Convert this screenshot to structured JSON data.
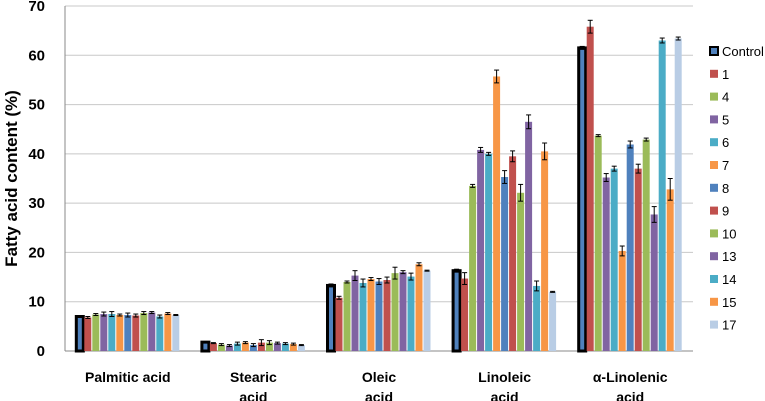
{
  "chart_data": {
    "type": "bar",
    "title": "",
    "xlabel": "",
    "ylabel": "Fatty acid content (%)",
    "ylim": [
      0,
      70
    ],
    "yticks": [
      0,
      10,
      20,
      30,
      40,
      50,
      60,
      70
    ],
    "grid": true,
    "legend_position": "right",
    "categories": [
      [
        "Palmitic acid"
      ],
      [
        "Stearic",
        "acid"
      ],
      [
        "Oleic",
        "acid"
      ],
      [
        "Linoleic",
        "acid"
      ],
      [
        "α-Linolenic",
        "acid"
      ]
    ],
    "series": [
      {
        "name": "Control",
        "color": "#4F81BD",
        "highlight": true,
        "values": [
          7.0,
          1.8,
          13.3,
          16.3,
          61.5
        ],
        "errors": [
          0.2,
          0.1,
          0.3,
          0.3,
          0.3
        ]
      },
      {
        "name": "1",
        "color": "#C0504D",
        "values": [
          6.8,
          1.6,
          10.8,
          14.7,
          65.8
        ],
        "errors": [
          0.2,
          0.1,
          0.3,
          1.2,
          1.3
        ]
      },
      {
        "name": "4",
        "color": "#9BBB59",
        "values": [
          7.4,
          1.3,
          14.0,
          33.5,
          43.7
        ],
        "errors": [
          0.2,
          0.2,
          0.2,
          0.3,
          0.2
        ]
      },
      {
        "name": "5",
        "color": "#8064A2",
        "values": [
          7.5,
          1.1,
          15.3,
          40.8,
          35.2
        ],
        "errors": [
          0.4,
          0.2,
          1.0,
          0.5,
          0.8
        ]
      },
      {
        "name": "6",
        "color": "#4BACC6",
        "values": [
          7.5,
          1.5,
          13.8,
          40.0,
          37.0
        ],
        "errors": [
          0.5,
          0.3,
          0.8,
          0.3,
          0.5
        ]
      },
      {
        "name": "7",
        "color": "#F79646",
        "values": [
          7.3,
          1.7,
          14.6,
          55.7,
          20.3
        ],
        "errors": [
          0.2,
          0.2,
          0.3,
          1.3,
          1.0
        ]
      },
      {
        "name": "8",
        "color": "#4F81BD",
        "values": [
          7.3,
          1.2,
          14.1,
          35.3,
          41.9
        ],
        "errors": [
          0.4,
          0.3,
          0.6,
          1.3,
          0.7
        ]
      },
      {
        "name": "9",
        "color": "#C0504D",
        "values": [
          7.2,
          1.7,
          14.4,
          39.5,
          37.0
        ],
        "errors": [
          0.3,
          0.6,
          0.6,
          1.1,
          0.9
        ]
      },
      {
        "name": "10",
        "color": "#9BBB59",
        "values": [
          7.7,
          1.7,
          15.8,
          32.1,
          42.9
        ],
        "errors": [
          0.3,
          0.4,
          1.2,
          1.7,
          0.3
        ]
      },
      {
        "name": "13",
        "color": "#8064A2",
        "values": [
          7.8,
          1.6,
          16.0,
          46.5,
          27.7
        ],
        "errors": [
          0.2,
          0.2,
          0.3,
          1.4,
          1.6
        ]
      },
      {
        "name": "14",
        "color": "#4BACC6",
        "values": [
          7.0,
          1.5,
          15.1,
          13.2,
          63.0
        ],
        "errors": [
          0.3,
          0.2,
          0.7,
          1.0,
          0.5
        ]
      },
      {
        "name": "15",
        "color": "#F79646",
        "values": [
          7.6,
          1.4,
          17.6,
          40.5,
          32.8
        ],
        "errors": [
          0.2,
          0.2,
          0.3,
          1.7,
          2.2
        ]
      },
      {
        "name": "17",
        "color": "#B9CDE5",
        "values": [
          7.3,
          1.2,
          16.3,
          12.0,
          63.4
        ],
        "errors": [
          0.1,
          0.1,
          0.1,
          0.1,
          0.3
        ]
      }
    ]
  }
}
